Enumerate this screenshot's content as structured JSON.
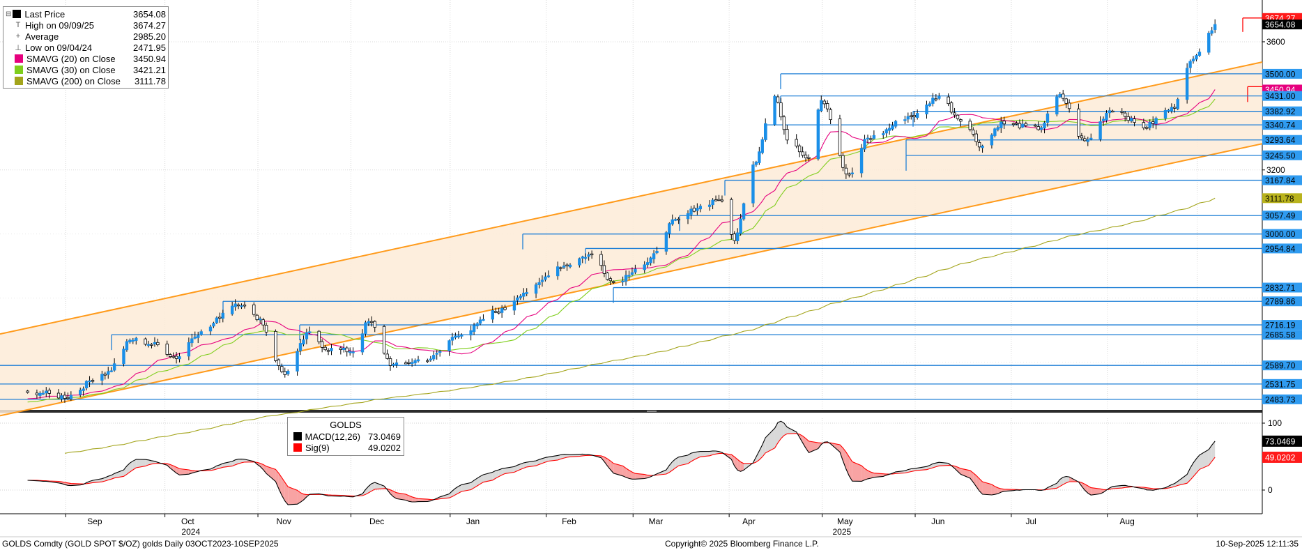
{
  "legend_main": [
    {
      "label": "Last Price",
      "value": "3654.08",
      "color": "#000000",
      "marker": "square",
      "collapse": "⊟"
    },
    {
      "label": "High on 09/09/25",
      "value": "3674.27",
      "color": "#555555",
      "marker": "T"
    },
    {
      "label": "Average",
      "value": "2985.20",
      "color": "#555555",
      "marker": "+"
    },
    {
      "label": "Low on 09/04/24",
      "value": "2471.95",
      "color": "#555555",
      "marker": "⊥"
    },
    {
      "label": "SMAVG (20)  on Close",
      "value": "3450.94",
      "color": "#e6007e",
      "marker": "square"
    },
    {
      "label": "SMAVG (30)  on Close",
      "value": "3421.21",
      "color": "#7fce1c",
      "marker": "square"
    },
    {
      "label": "SMAVG (200)  on Close",
      "value": "3111.78",
      "color": "#a3a41b",
      "marker": "square"
    }
  ],
  "legend_macd": {
    "title": "GOLDS",
    "rows": [
      {
        "label": "MACD(12,26)",
        "value": "73.0469",
        "color": "#000000"
      },
      {
        "label": "Sig(9)",
        "value": "49.0202",
        "color": "#ff0000"
      }
    ]
  },
  "footer": {
    "left": "GOLDS Comdty (GOLD SPOT $/OZ) golds  Daily 03OCT2023-10SEP2025",
    "center": "Copyright© 2025 Bloomberg Finance L.P.",
    "right": "10-Sep-2025 12:11:35"
  },
  "colors": {
    "candle_up": "#1a8fe8",
    "candle_down": "#000000",
    "level_line": "#1e7fd6",
    "channel": "#ff9a1a",
    "channel_fill": "#fdebd7",
    "sma20": "#e6007e",
    "sma30": "#7fce1c",
    "sma200": "#a3a41b",
    "macd": "#000000",
    "signal": "#ff0000",
    "macd_fill_pos": "#d9d9d9",
    "macd_fill_neg": "#f8a3a3"
  },
  "chart_data": [
    {
      "type": "candlestick",
      "title": "",
      "ylim": [
        2440,
        3700
      ],
      "y_gridlines": [
        3200,
        3600
      ],
      "x_months": [
        "Sep",
        "Oct",
        "Nov",
        "Dec",
        "Jan",
        "Feb",
        "Mar",
        "Apr",
        "May",
        "Jun",
        "Jul",
        "Aug"
      ],
      "x_years": [
        "2024",
        "2025"
      ],
      "y_ticks": [
        "3600",
        "3200"
      ],
      "price_anchors": [
        [
          "2024-08-26",
          2505
        ],
        [
          "2024-09-04",
          2492
        ],
        [
          "2024-09-17",
          2565
        ],
        [
          "2024-09-26",
          2670
        ],
        [
          "2024-10-03",
          2655
        ],
        [
          "2024-10-10",
          2615
        ],
        [
          "2024-10-17",
          2690
        ],
        [
          "2024-10-30",
          2785
        ],
        [
          "2024-11-05",
          2740
        ],
        [
          "2024-11-14",
          2565
        ],
        [
          "2024-11-22",
          2690
        ],
        [
          "2024-11-28",
          2640
        ],
        [
          "2024-12-06",
          2635
        ],
        [
          "2024-12-11",
          2725
        ],
        [
          "2024-12-19",
          2590
        ],
        [
          "2024-12-30",
          2610
        ],
        [
          "2025-01-10",
          2690
        ],
        [
          "2025-01-22",
          2760
        ],
        [
          "2025-01-31",
          2820
        ],
        [
          "2025-02-11",
          2900
        ],
        [
          "2025-02-21",
          2935
        ],
        [
          "2025-02-28",
          2850
        ],
        [
          "2025-03-10",
          2905
        ],
        [
          "2025-03-20",
          3040
        ],
        [
          "2025-03-28",
          3085
        ],
        [
          "2025-04-03",
          3110
        ],
        [
          "2025-04-08",
          2985
        ],
        [
          "2025-04-14",
          3220
        ],
        [
          "2025-04-21",
          3430
        ],
        [
          "2025-04-25",
          3300
        ],
        [
          "2025-05-02",
          3240
        ],
        [
          "2025-05-06",
          3420
        ],
        [
          "2025-05-15",
          3180
        ],
        [
          "2025-05-21",
          3300
        ],
        [
          "2025-06-05",
          3370
        ],
        [
          "2025-06-13",
          3430
        ],
        [
          "2025-06-20",
          3360
        ],
        [
          "2025-06-27",
          3275
        ],
        [
          "2025-07-03",
          3345
        ],
        [
          "2025-07-15",
          3330
        ],
        [
          "2025-07-22",
          3430
        ],
        [
          "2025-07-30",
          3290
        ],
        [
          "2025-08-08",
          3390
        ],
        [
          "2025-08-18",
          3335
        ],
        [
          "2025-08-27",
          3390
        ],
        [
          "2025-09-02",
          3535
        ],
        [
          "2025-09-09",
          3640
        ],
        [
          "2025-09-10",
          3654.08
        ]
      ],
      "last_price": 3654.08,
      "high": {
        "date": "09/09/25",
        "value": 3674.27
      },
      "low": {
        "date": "09/04/24",
        "value": 2471.95
      },
      "horizontal_levels": [
        3500.0,
        3459.94,
        3431.0,
        3382.92,
        3340.74,
        3293.64,
        3245.5,
        3167.84,
        3057.49,
        3000.0,
        2954.84,
        2832.71,
        2789.86,
        2716.19,
        2685.58,
        2589.7,
        2531.75,
        2483.73
      ],
      "axis_labels": [
        {
          "text": "3674.27",
          "value": 3674.27,
          "style": "red"
        },
        {
          "text": "3654.08",
          "value": 3654.08,
          "style": "black"
        },
        {
          "text": "3500.00",
          "value": 3500.0,
          "style": "blue"
        },
        {
          "text": "3450.94",
          "value": 3450.94,
          "style": "magenta"
        },
        {
          "text": "3431.00",
          "value": 3431.0,
          "style": "blue"
        },
        {
          "text": "3382.92",
          "value": 3382.92,
          "style": "blue"
        },
        {
          "text": "3340.74",
          "value": 3340.74,
          "style": "blue"
        },
        {
          "text": "3293.64",
          "value": 3293.64,
          "style": "blue"
        },
        {
          "text": "3245.50",
          "value": 3245.5,
          "style": "blue"
        },
        {
          "text": "3167.84",
          "value": 3167.84,
          "style": "blue"
        },
        {
          "text": "3111.78",
          "value": 3111.78,
          "style": "olive"
        },
        {
          "text": "3057.49",
          "value": 3057.49,
          "style": "blue"
        },
        {
          "text": "3000.00",
          "value": 3000.0,
          "style": "blue"
        },
        {
          "text": "2954.84",
          "value": 2954.84,
          "style": "blue"
        },
        {
          "text": "2832.71",
          "value": 2832.71,
          "style": "blue"
        },
        {
          "text": "2789.86",
          "value": 2789.86,
          "style": "blue"
        },
        {
          "text": "2716.19",
          "value": 2716.19,
          "style": "blue"
        },
        {
          "text": "2685.58",
          "value": 2685.58,
          "style": "blue"
        },
        {
          "text": "2589.70",
          "value": 2589.7,
          "style": "blue"
        },
        {
          "text": "2531.75",
          "value": 2531.75,
          "style": "blue"
        },
        {
          "text": "2483.73",
          "value": 2483.73,
          "style": "blue"
        }
      ],
      "channel": {
        "upper": [
          [
            "2024-08-20",
            2700
          ],
          [
            "2025-09-10",
            3505
          ]
        ],
        "lower": [
          [
            "2024-08-20",
            2445
          ],
          [
            "2025-09-10",
            3250
          ]
        ]
      },
      "sma_last": {
        "sma20": 3450.94,
        "sma30": 3421.21,
        "sma200": 3111.78
      }
    },
    {
      "type": "line",
      "title": "GOLDS",
      "series": [
        {
          "name": "MACD(12,26)",
          "last": 73.0469
        },
        {
          "name": "Sig(9)",
          "last": 49.0202
        }
      ],
      "ylim": [
        -25,
        110
      ],
      "y_ticks": [
        "100",
        "0"
      ]
    }
  ]
}
